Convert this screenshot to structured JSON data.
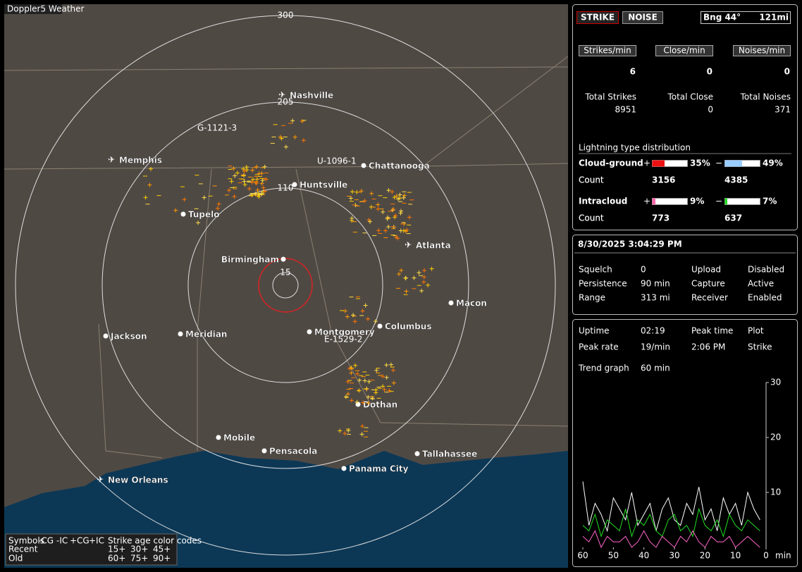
{
  "map": {
    "title": "Doppler5 Weather",
    "ring_labels": [
      "300",
      "205",
      "110",
      "15"
    ],
    "cities": [
      "Nashville",
      "Chattanooga",
      "Memphis",
      "Huntsville",
      "Tupelo",
      "Birmingham",
      "Atlanta",
      "Macon",
      "Jackson",
      "Meridian",
      "Montgomery",
      "Columbus",
      "Dothan",
      "Mobile",
      "Pensacola",
      "Tallahassee",
      "Panama City",
      "New Orleans"
    ],
    "stations": [
      "G-1121-3",
      "U-1096-1",
      "E-1529-2"
    ],
    "legend": {
      "header": [
        "Symbols",
        "-CG",
        "-IC",
        "+CG",
        "+IC",
        "Strike age color codes"
      ],
      "rows": [
        "Recent",
        "Old"
      ],
      "ages": [
        [
          "15+",
          "30+",
          "45+"
        ],
        [
          "60+",
          "75+",
          "90+"
        ]
      ]
    }
  },
  "panel": {
    "modes": [
      "STRIKE",
      "NOISE"
    ],
    "bearing": "Bng 44°",
    "distance": "121mi",
    "rate_labels": [
      "Strikes/min",
      "Close/min",
      "Noises/min"
    ],
    "rates": [
      6,
      0,
      0
    ],
    "total_labels": [
      "Total Strikes",
      "Total Close",
      "Total Noises"
    ],
    "totals": [
      8951,
      0,
      371
    ],
    "distribution": {
      "title": "Lightning type distribution",
      "count_label": "Count",
      "plus": "+",
      "minus": "−",
      "types": [
        {
          "name": "Cloud-ground",
          "plus_pct": {
            "value": 35,
            "label": "35%"
          },
          "minus_pct": {
            "value": 49,
            "label": "49%"
          },
          "plus_count": 3156,
          "minus_count": 4385
        },
        {
          "name": "Intracloud",
          "plus_pct": {
            "value": 9,
            "label": "9%"
          },
          "minus_pct": {
            "value": 7,
            "label": "7%"
          },
          "plus_count": 773,
          "minus_count": 637
        }
      ]
    },
    "datetime": "8/30/2025 3:04:29 PM",
    "settings": [
      [
        "Squelch",
        "0",
        "Upload",
        "Disabled"
      ],
      [
        "Persistence",
        "90 min",
        "Capture",
        "Active"
      ],
      [
        "Range",
        "313 mi",
        "Receiver",
        "Enabled"
      ]
    ],
    "stats": [
      [
        "Uptime",
        "02:19",
        "Peak time",
        "Plot"
      ],
      [
        "Peak rate",
        "19/min",
        "2:06 PM",
        "Strike"
      ]
    ],
    "trend_label": [
      "Trend graph",
      "60 min"
    ]
  },
  "chart_data": {
    "type": "line",
    "xlabel": "min",
    "x": [
      60,
      58,
      56,
      54,
      52,
      50,
      48,
      46,
      44,
      42,
      40,
      38,
      36,
      34,
      32,
      30,
      28,
      26,
      24,
      22,
      20,
      18,
      16,
      14,
      12,
      10,
      8,
      6,
      4,
      2
    ],
    "xlim": [
      60,
      0
    ],
    "xticks": [
      60,
      50,
      40,
      30,
      20,
      10,
      0
    ],
    "ylim": [
      0,
      30
    ],
    "yticks": [
      10,
      20,
      30
    ],
    "series": [
      {
        "color": "#ffffff",
        "values": [
          12,
          4,
          8,
          6,
          3,
          9,
          7,
          5,
          10,
          4,
          6,
          8,
          3,
          7,
          9,
          5,
          4,
          8,
          6,
          11,
          5,
          7,
          3,
          9,
          6,
          8,
          4,
          10,
          7,
          5
        ]
      },
      {
        "color": "#22dd22",
        "values": [
          4,
          3,
          6,
          2,
          5,
          4,
          3,
          7,
          2,
          5,
          4,
          6,
          3,
          2,
          5,
          6,
          3,
          4,
          2,
          7,
          4,
          3,
          5,
          2,
          6,
          4,
          3,
          5,
          4,
          3
        ]
      },
      {
        "color": "#ff66cc",
        "values": [
          2,
          1,
          3,
          0,
          2,
          1,
          1,
          2,
          0,
          1,
          3,
          1,
          0,
          2,
          1,
          0,
          2,
          1,
          3,
          1,
          0,
          2,
          1,
          1,
          2,
          0,
          1,
          2,
          1,
          0
        ]
      }
    ]
  }
}
